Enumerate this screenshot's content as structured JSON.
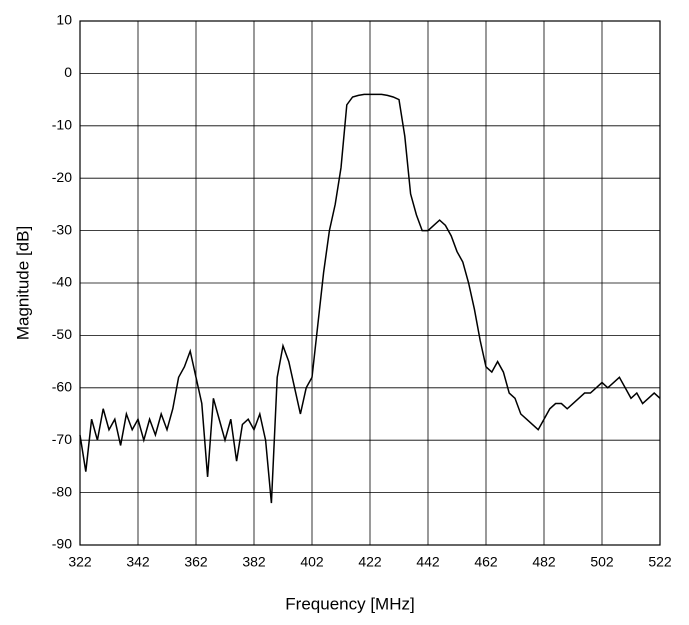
{
  "chart_data": {
    "type": "line",
    "xlabel": "Frequency [MHz]",
    "ylabel": "Magnitude [dB]",
    "x": [
      322,
      324,
      326,
      328,
      330,
      332,
      334,
      336,
      338,
      340,
      342,
      344,
      346,
      348,
      350,
      352,
      354,
      356,
      358,
      360,
      362,
      364,
      366,
      368,
      370,
      372,
      374,
      376,
      378,
      380,
      382,
      384,
      386,
      388,
      390,
      392,
      394,
      396,
      398,
      400,
      402,
      404,
      406,
      408,
      410,
      412,
      414,
      416,
      418,
      420,
      422,
      424,
      426,
      428,
      430,
      432,
      434,
      436,
      438,
      440,
      442,
      444,
      446,
      448,
      450,
      452,
      454,
      456,
      458,
      460,
      462,
      464,
      466,
      468,
      470,
      472,
      474,
      476,
      478,
      480,
      482,
      484,
      486,
      488,
      490,
      492,
      494,
      496,
      498,
      500,
      502,
      504,
      506,
      508,
      510,
      512,
      514,
      516,
      518,
      520,
      522
    ],
    "series": [
      {
        "name": "Magnitude",
        "color": "#000000",
        "values": [
          -69,
          -76,
          -66,
          -70,
          -64,
          -68,
          -66,
          -71,
          -65,
          -68,
          -66,
          -70,
          -66,
          -69,
          -65,
          -68,
          -64,
          -58,
          -56,
          -53,
          -58,
          -63,
          -77,
          -62,
          -66,
          -70,
          -66,
          -74,
          -67,
          -66,
          -68,
          -65,
          -70,
          -82,
          -58,
          -52,
          -55,
          -60,
          -65,
          -60,
          -58,
          -48,
          -38,
          -30,
          -25,
          -18,
          -6,
          -4.5,
          -4.2,
          -4,
          -4,
          -4,
          -4,
          -4.2,
          -4.5,
          -5,
          -12,
          -23,
          -27,
          -30,
          -30,
          -29,
          -28,
          -29,
          -31,
          -34,
          -36,
          -40,
          -45,
          -51,
          -56,
          -57,
          -55,
          -57,
          -61,
          -62,
          -65,
          -66,
          -67,
          -68,
          -66,
          -64,
          -63,
          -63,
          -64,
          -63,
          -62,
          -61,
          -61,
          -60,
          -59,
          -60,
          -59,
          -58,
          -60,
          -62,
          -61,
          -63,
          -62,
          -61,
          -62
        ]
      }
    ],
    "xlim": [
      322,
      522
    ],
    "xticks": [
      322,
      342,
      362,
      382,
      402,
      422,
      442,
      462,
      482,
      502,
      522
    ],
    "ylim": [
      -90,
      10
    ],
    "yticks": [
      -90,
      -80,
      -70,
      -60,
      -50,
      -40,
      -30,
      -20,
      -10,
      0,
      10
    ],
    "grid": true
  }
}
